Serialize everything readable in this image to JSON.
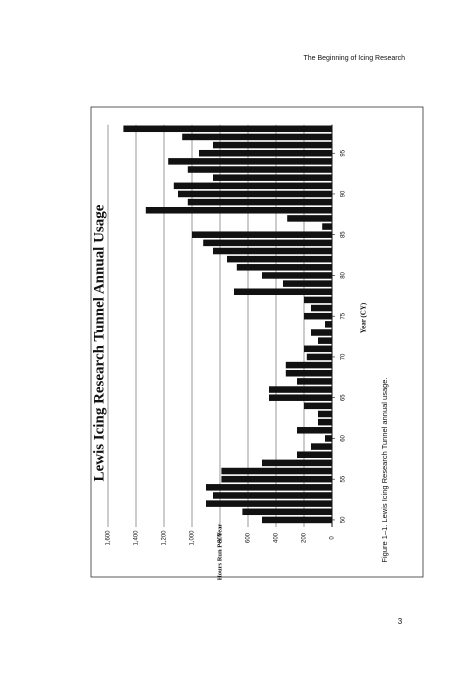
{
  "header": "The Beginning of Icing Research",
  "caption": "Figure 1–1. Lewis Icing Research Tunnel annual usage.",
  "page_number": "3",
  "chart_data": {
    "type": "bar",
    "orientation": "rotated",
    "title": "Lewis Icing Research Tunnel Annual Usage",
    "x_label": "Year  (CY)",
    "y_label": "Hours Run Per Year",
    "x": [
      50,
      51,
      52,
      53,
      54,
      55,
      56,
      57,
      58,
      59,
      60,
      61,
      62,
      63,
      64,
      65,
      66,
      67,
      68,
      69,
      70,
      71,
      72,
      73,
      74,
      75,
      76,
      77,
      78,
      79,
      80,
      81,
      82,
      83,
      84,
      85,
      86,
      87,
      88,
      89,
      90,
      91,
      92,
      93,
      94,
      95,
      96,
      97,
      98
    ],
    "values": [
      500,
      640,
      900,
      850,
      900,
      790,
      790,
      500,
      250,
      150,
      50,
      250,
      100,
      100,
      200,
      450,
      450,
      250,
      330,
      330,
      180,
      200,
      100,
      150,
      50,
      200,
      150,
      200,
      700,
      350,
      500,
      680,
      750,
      850,
      920,
      1000,
      70,
      320,
      1330,
      1030,
      1100,
      1130,
      850,
      1030,
      1170,
      950,
      850,
      1070,
      1490
    ],
    "color": "#111111",
    "xlim": [
      49.5,
      98.5
    ],
    "xticks": [
      50,
      55,
      60,
      65,
      70,
      75,
      80,
      85,
      90,
      95
    ],
    "ylim": [
      0,
      1600
    ],
    "yticks": [
      0,
      200,
      400,
      600,
      800,
      {
        "value": 1000,
        "label": "1,000"
      },
      {
        "value": 1200,
        "label": "1,200"
      },
      {
        "value": 1400,
        "label": "1,400"
      },
      {
        "value": 1600,
        "label": "1,600"
      }
    ],
    "grid": true
  }
}
